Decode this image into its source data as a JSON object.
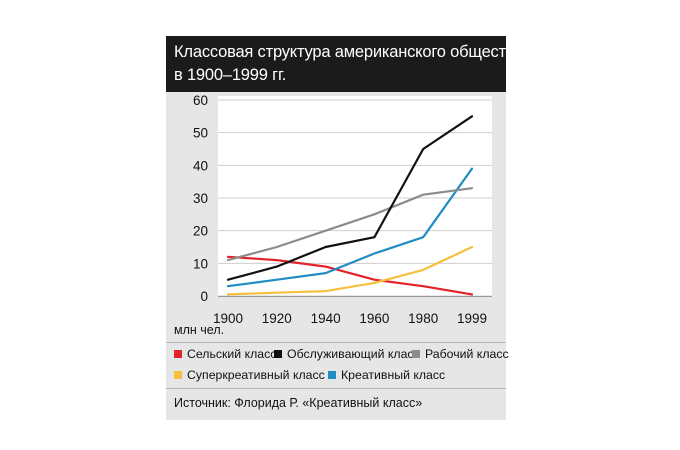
{
  "title_line1": "Классовая структура американского общества",
  "title_line2": "в 1900–1999 гг.",
  "unit_label": "млн чел.",
  "source": "Источник: Флорида Р. «Креативный класс»",
  "chart_data": {
    "type": "line",
    "x": [
      "1900",
      "1920",
      "1940",
      "1960",
      "1980",
      "1999"
    ],
    "ylim": [
      0,
      60
    ],
    "yticks": [
      "0",
      "10",
      "20",
      "30",
      "40",
      "50",
      "60"
    ],
    "grid": true,
    "legend_position": "bottom",
    "series": [
      {
        "name": "Сельский класс",
        "color": "#e2232a",
        "values": [
          12,
          11,
          9,
          5,
          3,
          0.5
        ]
      },
      {
        "name": "Обслуживающий класс",
        "color": "#111111",
        "values": [
          5,
          9,
          15,
          18,
          45,
          55
        ]
      },
      {
        "name": "Рабочий класс",
        "color": "#8c8c8c",
        "values": [
          11,
          15,
          20,
          25,
          31,
          33
        ]
      },
      {
        "name": "Суперкреативный класс",
        "color": "#f5c03d",
        "values": [
          0.5,
          1,
          1.5,
          4,
          8,
          15
        ]
      },
      {
        "name": "Креативный класс",
        "color": "#1f8dc4",
        "values": [
          3,
          5,
          7,
          13,
          18,
          39
        ]
      }
    ]
  }
}
